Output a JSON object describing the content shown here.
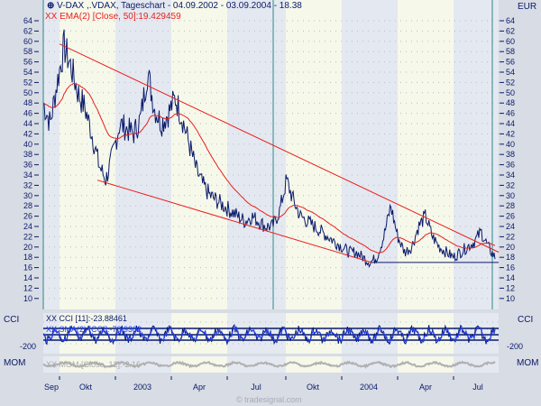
{
  "header": {
    "title": "V-DAX ,.VDAX, Tageschart - 04.09.2002 - 03.09.2004 - 18.38",
    "ema_label": "XX EMA(2) [Close, 50]:19.429459",
    "currency": "EUR"
  },
  "panels": {
    "cci_name": "CCI",
    "cci_label": "XX CCI [11]:-23.88461",
    "sma_label": "XX SMA(2) [CCI]:-70.9302",
    "cci_tick": "-200",
    "mom_name": "MOM",
    "mom_label": "XX MOM [Close, 12]:-2.16"
  },
  "watermark": "© tradesignal.com",
  "colors": {
    "price": "#0a1a6a",
    "ema": "#e8201a",
    "trend": "#e8201a",
    "cci": "#0a1a6a",
    "sma": "#2040ff",
    "mom": "#b0b0b0",
    "grid_band_a": "#e4e8f0",
    "grid_band_b": "#f6f8ea"
  },
  "chart_data": {
    "type": "line",
    "title": "V-DAX ,.VDAX, Tageschart",
    "xlabel": "",
    "ylabel": "EUR",
    "ylim": [
      8,
      66
    ],
    "yticks": [
      10,
      12,
      14,
      16,
      18,
      20,
      22,
      24,
      26,
      28,
      30,
      32,
      34,
      36,
      38,
      40,
      42,
      44,
      46,
      48,
      50,
      52,
      54,
      56,
      58,
      60,
      62,
      64
    ],
    "xtick_labels": [
      "Sep",
      "Okt",
      "2003",
      "Apr",
      "Jul",
      "Okt",
      "2004",
      "Apr",
      "Jul"
    ],
    "series": [
      {
        "name": "V-DAX Close",
        "values": [
          48,
          44,
          52,
          59,
          55,
          50,
          47,
          42,
          36,
          33,
          38,
          44,
          43,
          42,
          45,
          54,
          47,
          44,
          46,
          49,
          45,
          40,
          35,
          32,
          30,
          29,
          28,
          27,
          26,
          25,
          26,
          25,
          24,
          24,
          27,
          33,
          29,
          26,
          25,
          24,
          23,
          22,
          21,
          20,
          19,
          19,
          18,
          17,
          18,
          22,
          28,
          22,
          19,
          20,
          24,
          26,
          22,
          20,
          19,
          18,
          19,
          20,
          21,
          23,
          20,
          18
        ]
      },
      {
        "name": "EMA 50",
        "values": "computed"
      }
    ],
    "trendlines": [
      {
        "from": [
          "2002-09",
          59.5
        ],
        "to": [
          "2004-09",
          19
        ]
      },
      {
        "from": [
          "2002-10",
          33
        ],
        "to": [
          "2004-01",
          17
        ]
      },
      {
        "from": [
          "2004-01",
          17
        ],
        "to": [
          "2004-09",
          17
        ]
      }
    ]
  }
}
